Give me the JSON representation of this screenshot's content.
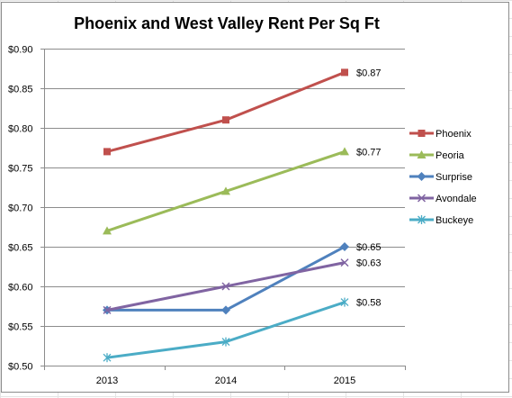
{
  "chart_data": {
    "type": "line",
    "title": "Phoenix and West Valley Rent Per Sq Ft",
    "xlabel": "",
    "ylabel": "",
    "categories": [
      "2013",
      "2014",
      "2015"
    ],
    "ylim": [
      0.5,
      0.9
    ],
    "y_ticks": [
      "$0.50",
      "$0.55",
      "$0.60",
      "$0.65",
      "$0.70",
      "$0.75",
      "$0.80",
      "$0.85",
      "$0.90"
    ],
    "grid": true,
    "legend_position": "right",
    "series": [
      {
        "name": "Phoenix",
        "values": [
          0.77,
          0.81,
          0.87
        ],
        "color": "#c0504d",
        "marker": "square",
        "end_label": "$0.87"
      },
      {
        "name": "Peoria",
        "values": [
          0.67,
          0.72,
          0.77
        ],
        "color": "#9bbb59",
        "marker": "triangle",
        "end_label": "$0.77"
      },
      {
        "name": "Surprise",
        "values": [
          0.57,
          0.57,
          0.65
        ],
        "color": "#4f81bd",
        "marker": "diamond",
        "end_label": "$0.65"
      },
      {
        "name": "Avondale",
        "values": [
          0.57,
          0.6,
          0.63
        ],
        "color": "#8064a2",
        "marker": "x",
        "end_label": "$0.63"
      },
      {
        "name": "Buckeye",
        "values": [
          0.51,
          0.53,
          0.58
        ],
        "color": "#4bacc6",
        "marker": "star",
        "end_label": "$0.58"
      }
    ]
  }
}
